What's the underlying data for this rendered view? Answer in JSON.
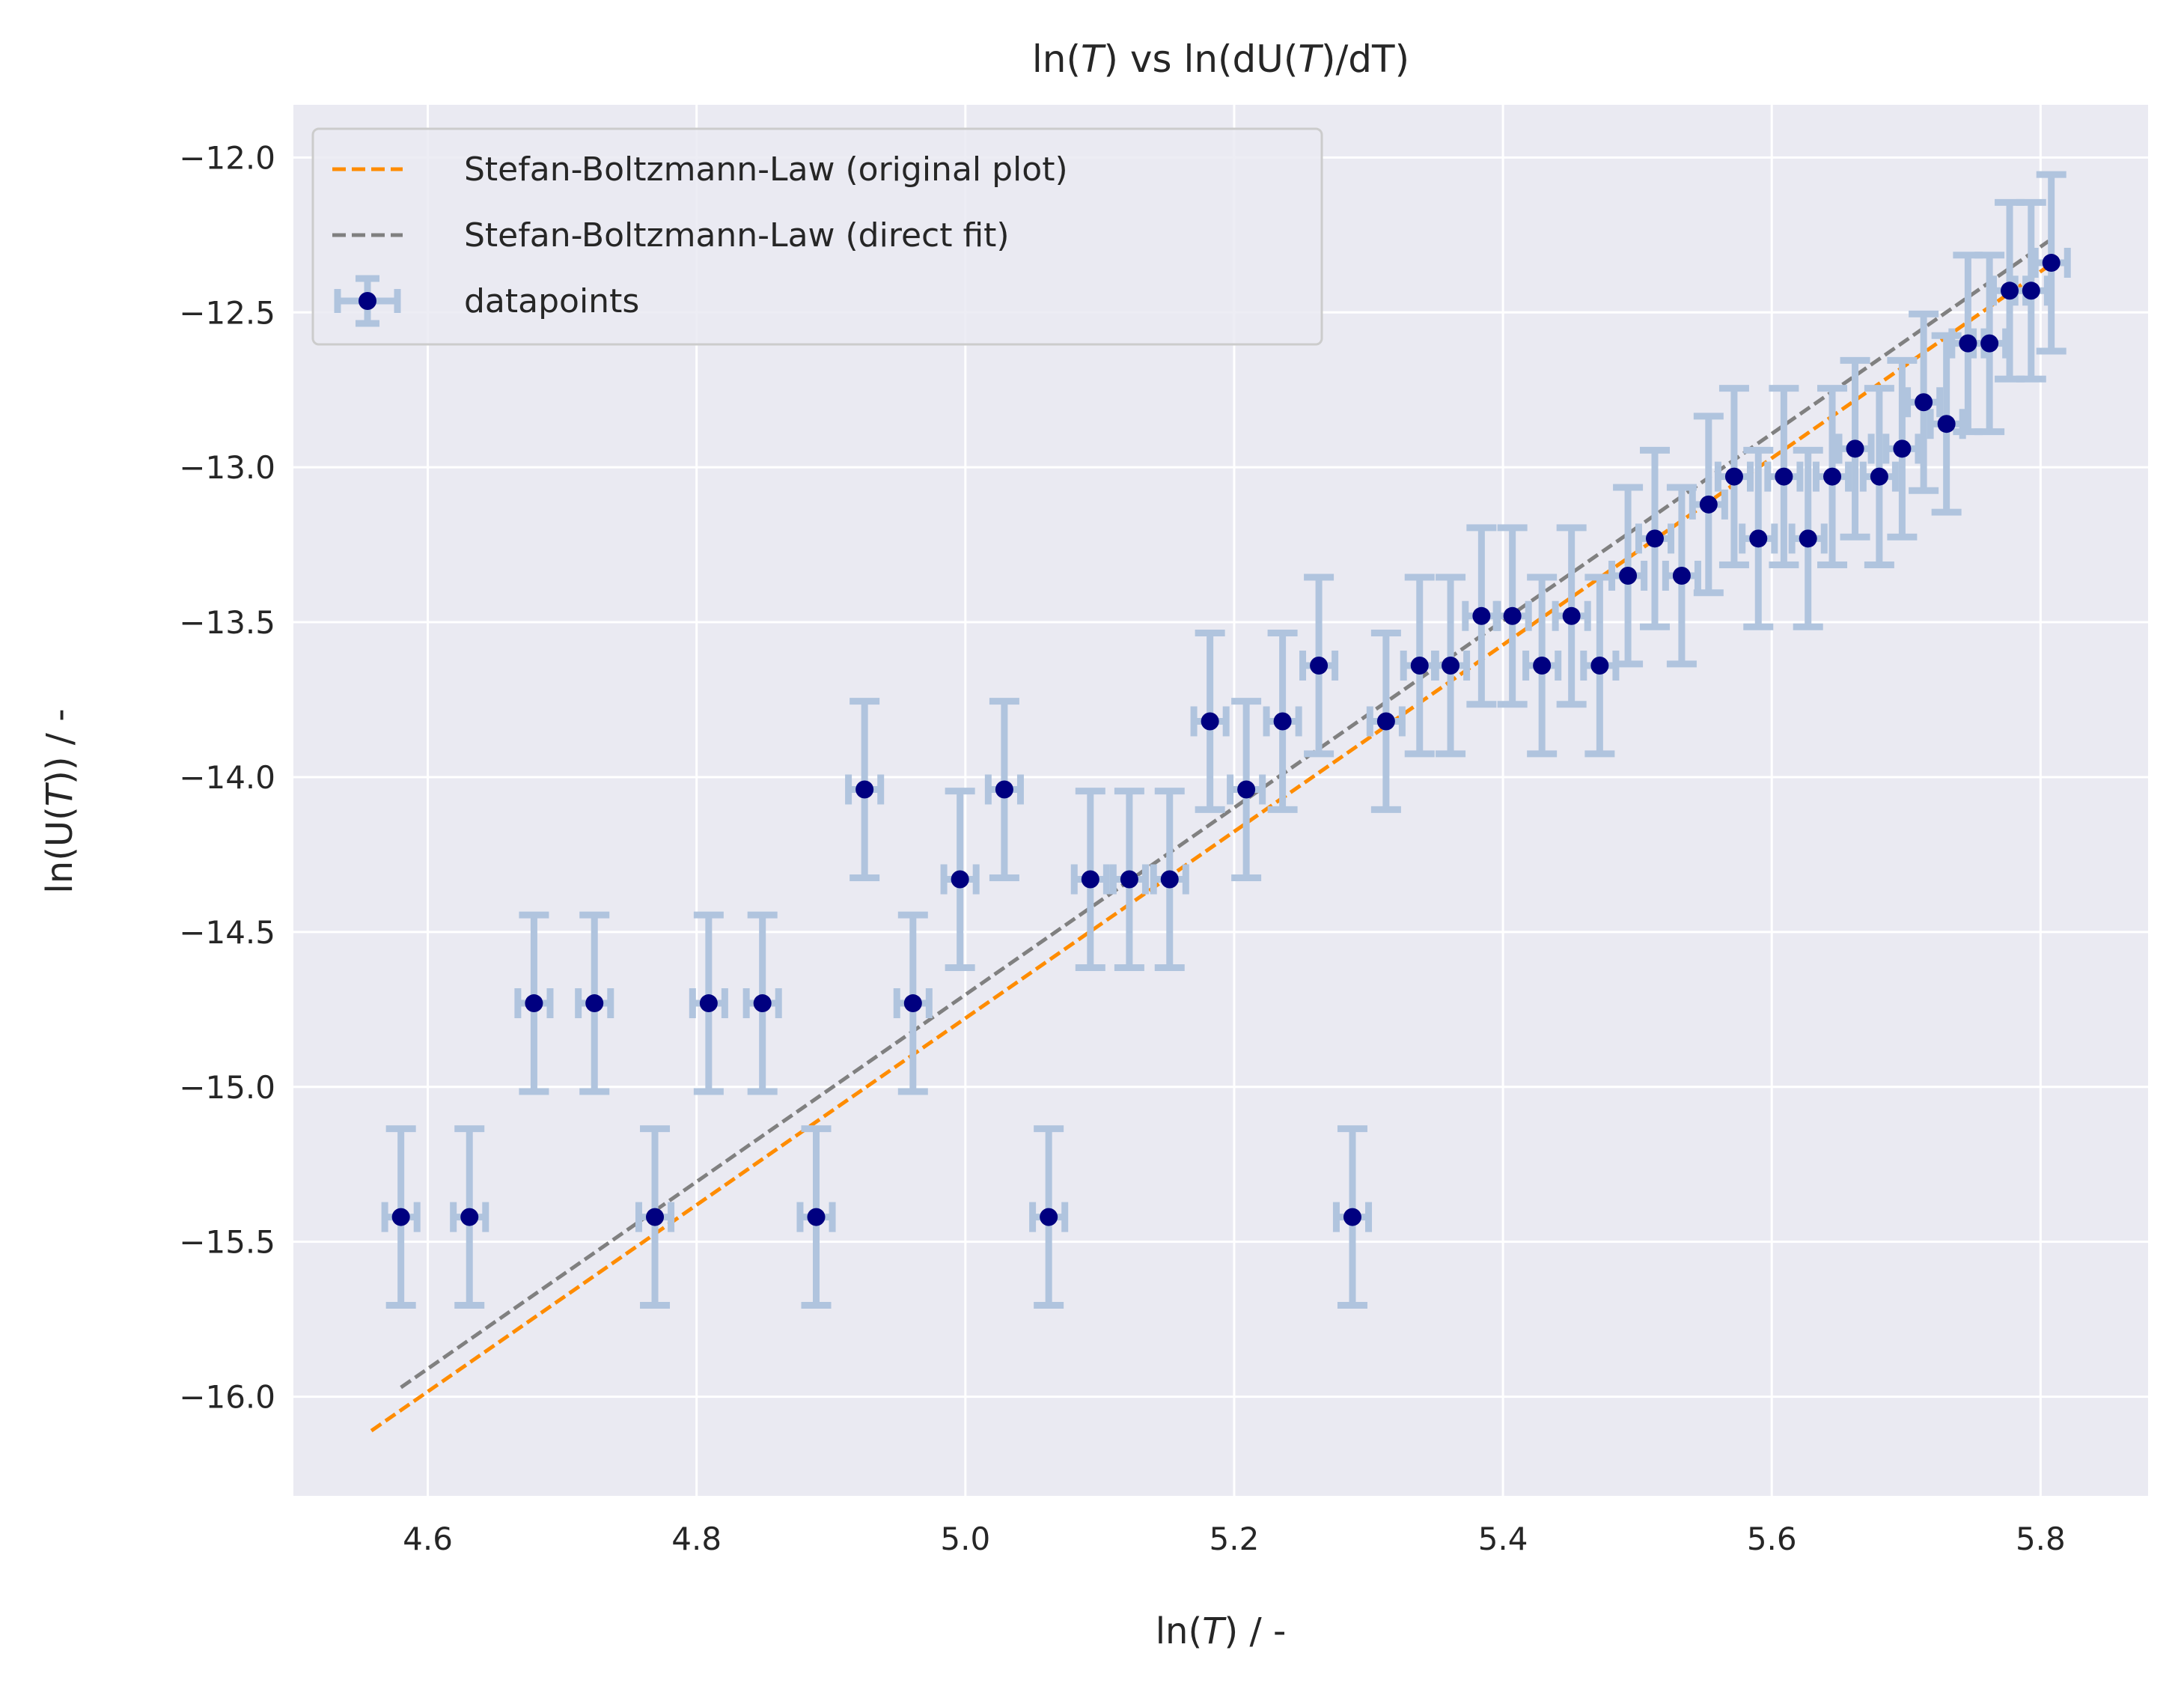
{
  "chart_data": {
    "type": "scatter",
    "title_parts": [
      "ln(",
      "T",
      ") vs ln(dU(",
      "T",
      ")/dT)"
    ],
    "xlabel_parts": [
      "ln(",
      "T",
      ") / -"
    ],
    "ylabel_parts": [
      "ln(U(",
      "T",
      ")) / -"
    ],
    "xlim": [
      4.5,
      5.88
    ],
    "ylim": [
      -16.32,
      -11.83
    ],
    "xticks": [
      4.6,
      4.8,
      5.0,
      5.2,
      5.4,
      5.6,
      5.8
    ],
    "xtick_labels": [
      "4.6",
      "4.8",
      "5.0",
      "5.2",
      "5.4",
      "5.6",
      "5.8"
    ],
    "yticks": [
      -16.0,
      -15.5,
      -15.0,
      -14.5,
      -14.0,
      -13.5,
      -13.0,
      -12.5,
      -12.0
    ],
    "ytick_labels": [
      "−16.0",
      "−15.5",
      "−15.0",
      "−14.5",
      "−14.0",
      "−13.5",
      "−13.0",
      "−12.5",
      "−12.0"
    ],
    "grid": true,
    "legend_position": "upper-left",
    "colors": {
      "background": "#eaeaf2",
      "grid": "#ffffff",
      "points": "#000080",
      "errorbars": "#b0c4de",
      "original_fit": "#ff8c00",
      "direct_fit": "#808080"
    },
    "series": [
      {
        "name": "Stefan-Boltzmann-Law (original plot)",
        "kind": "dashed-line",
        "x": [
          4.558,
          5.806
        ],
        "y": [
          -16.11,
          -12.35
        ]
      },
      {
        "name": "Stefan-Boltzmann-Law (direct fit)",
        "kind": "dashed-line",
        "x": [
          4.58,
          5.806
        ],
        "y": [
          -15.97,
          -12.27
        ]
      },
      {
        "name": "datapoints",
        "kind": "errorbar-scatter",
        "x_err": 0.012,
        "y_err": 0.285,
        "x": [
          4.58,
          4.631,
          4.679,
          4.724,
          4.769,
          4.809,
          4.849,
          4.889,
          4.925,
          4.961,
          4.996,
          5.029,
          5.062,
          5.093,
          5.122,
          5.152,
          5.182,
          5.209,
          5.236,
          5.263,
          5.288,
          5.313,
          5.338,
          5.361,
          5.384,
          5.407,
          5.429,
          5.451,
          5.472,
          5.493,
          5.513,
          5.533,
          5.553,
          5.572,
          5.59,
          5.609,
          5.627,
          5.645,
          5.662,
          5.68,
          5.697,
          5.713,
          5.73,
          5.746,
          5.762,
          5.777,
          5.793,
          5.808
        ],
        "y": [
          -15.42,
          -15.42,
          -14.73,
          -14.73,
          -15.42,
          -14.73,
          -14.73,
          -15.42,
          -14.04,
          -14.73,
          -14.33,
          -14.04,
          -15.42,
          -14.33,
          -14.33,
          -14.33,
          -13.82,
          -14.04,
          -13.82,
          -13.64,
          -15.42,
          -13.82,
          -13.64,
          -13.64,
          -13.48,
          -13.48,
          -13.64,
          -13.48,
          -13.64,
          -13.35,
          -13.23,
          -13.35,
          -13.12,
          -13.03,
          -13.23,
          -13.03,
          -13.23,
          -13.03,
          -12.94,
          -13.03,
          -12.94,
          -12.79,
          -12.86,
          -12.6,
          -12.6,
          -12.43,
          -12.43,
          -12.34
        ]
      }
    ]
  }
}
